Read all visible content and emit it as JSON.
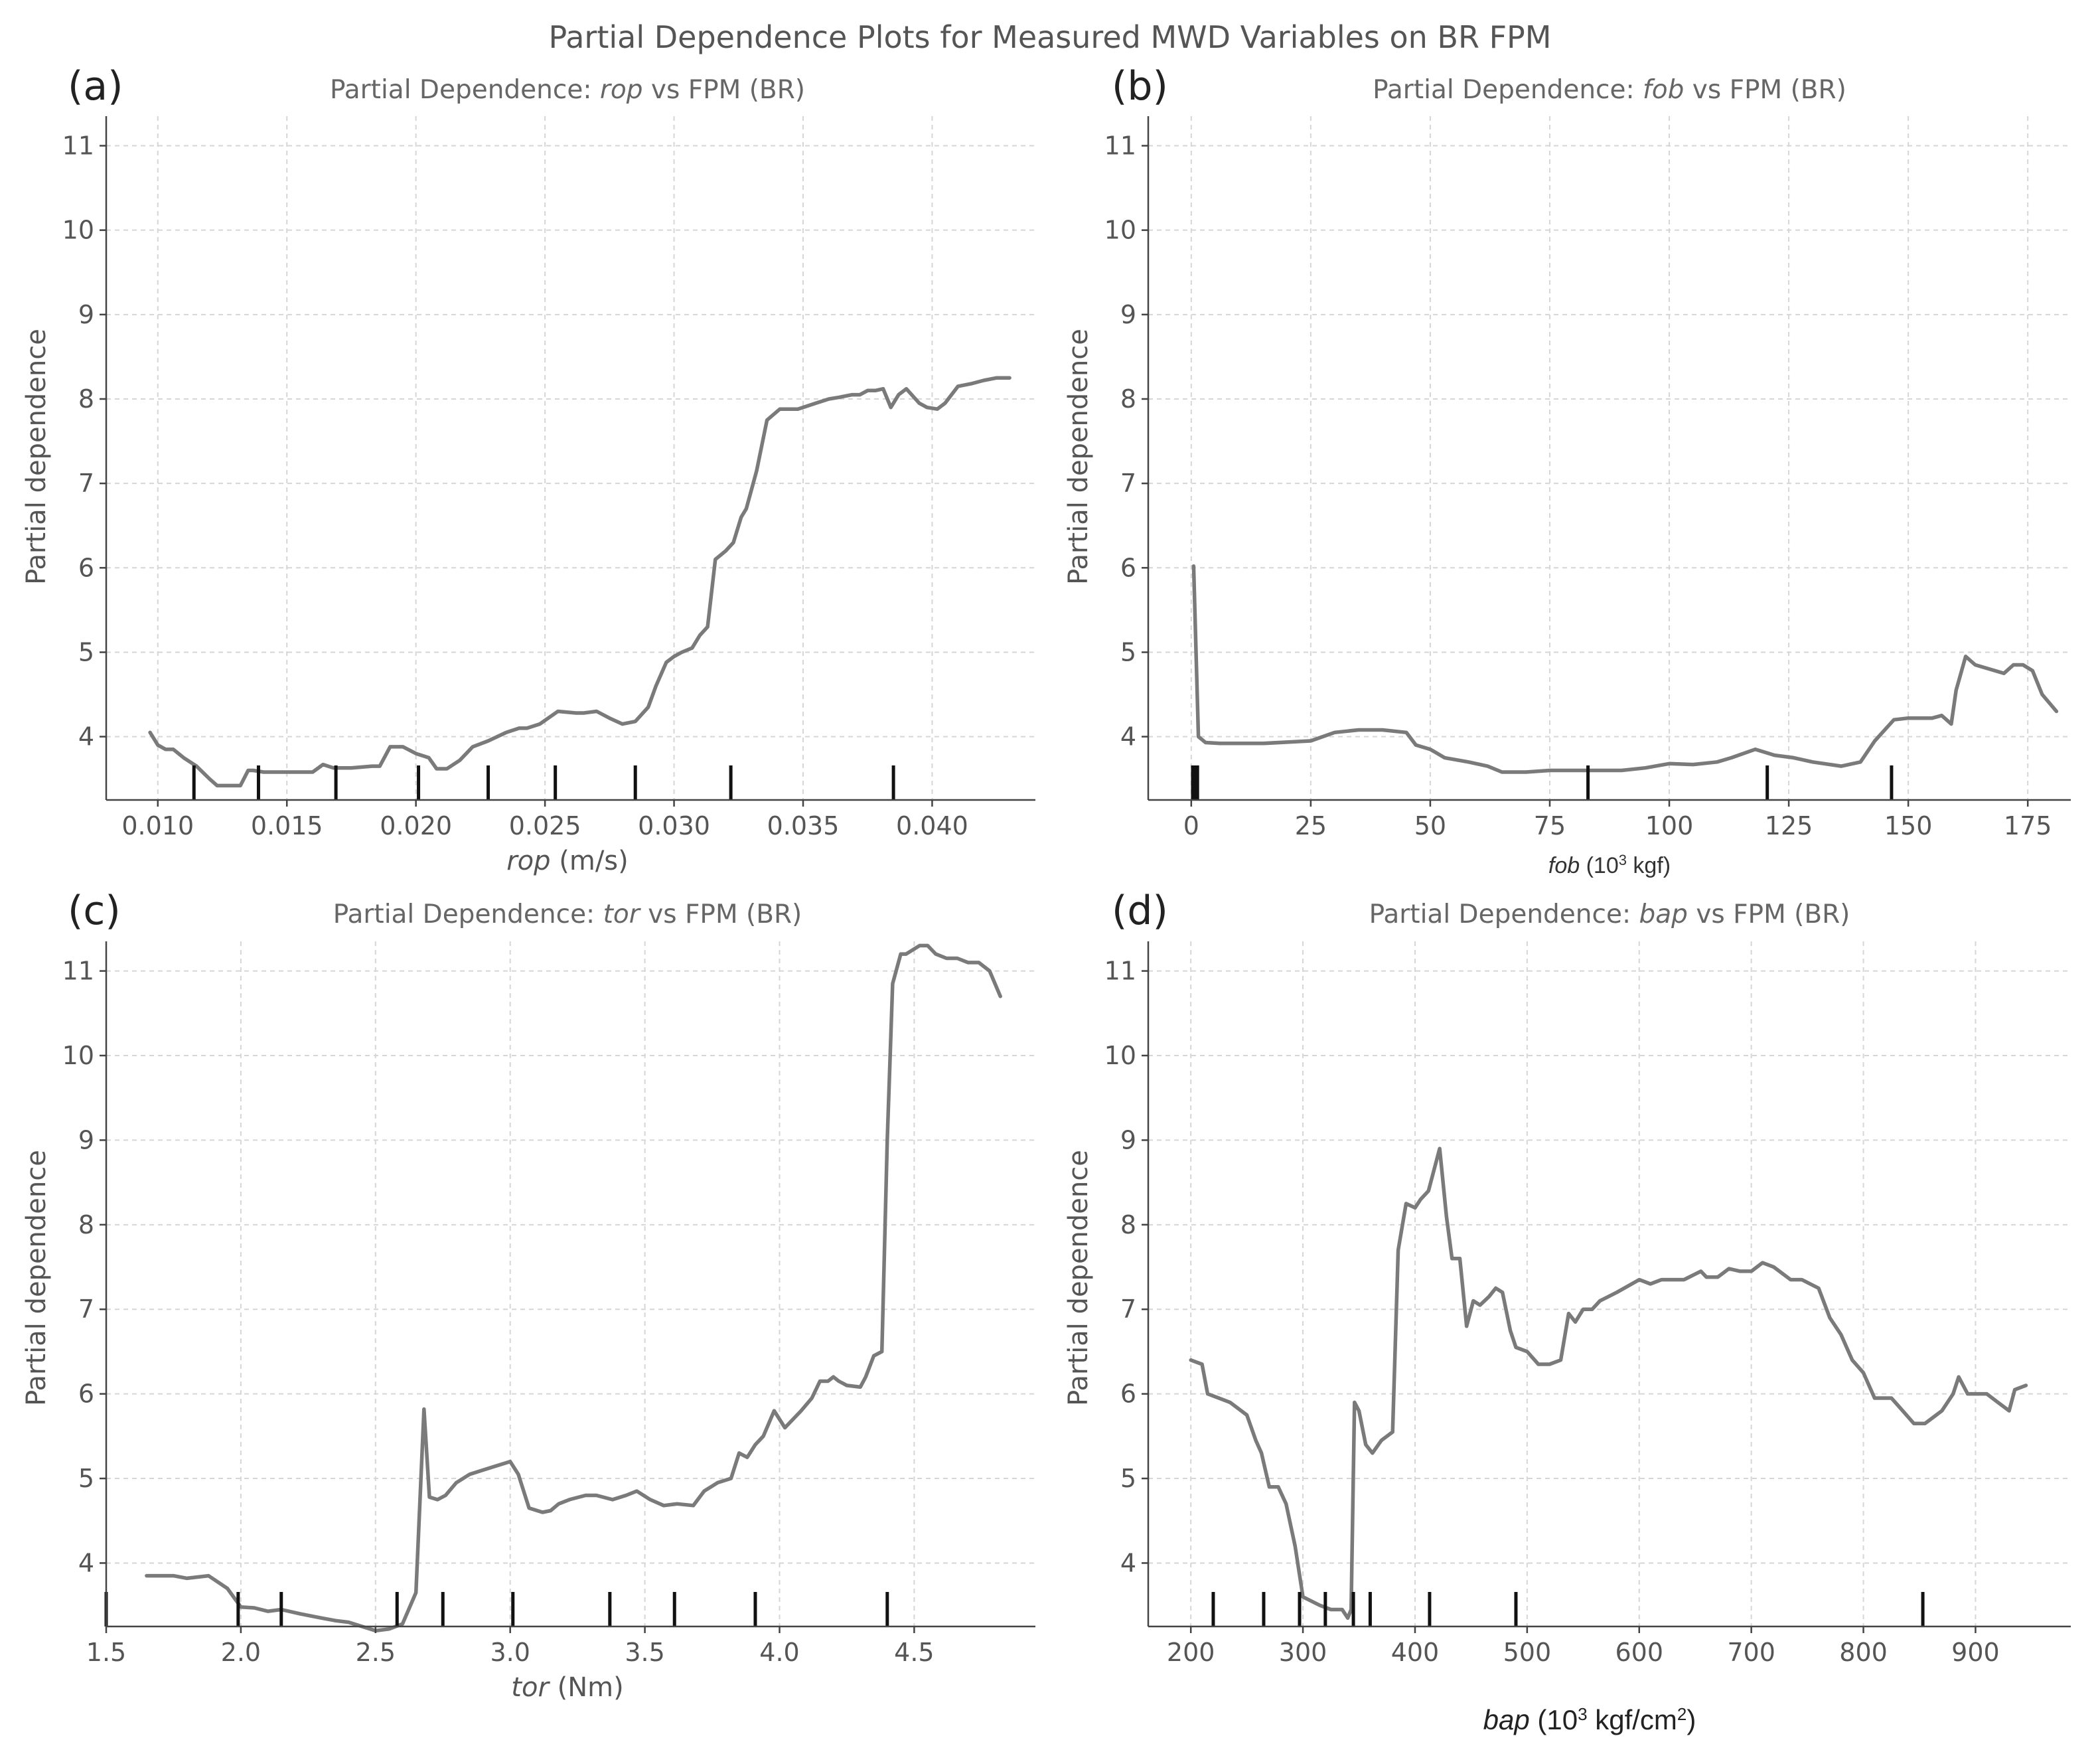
{
  "figure_title": "Partial Dependence Plots for Measured MWD Variables on BR FPM",
  "chart_data": [
    {
      "panel": "(a)",
      "type": "line",
      "title_prefix": "Partial Dependence: ",
      "title_var": "rop",
      "title_suffix": " vs FPM (BR)",
      "xlabel_var": "rop",
      "xlabel_unit": " (m/s)",
      "ylabel": "Partial dependence",
      "xlim": [
        0.008,
        0.044
      ],
      "ylim": [
        3.25,
        11.35
      ],
      "xticks": [
        0.01,
        0.015,
        0.02,
        0.025,
        0.03,
        0.035,
        0.04
      ],
      "xtick_labels": [
        "0.010",
        "0.015",
        "0.020",
        "0.025",
        "0.030",
        "0.035",
        "0.040"
      ],
      "yticks": [
        4,
        5,
        6,
        7,
        8,
        9,
        10,
        11
      ],
      "ytick_labels": [
        "4",
        "5",
        "6",
        "7",
        "8",
        "9",
        "10",
        "11"
      ],
      "grid": true,
      "rug": [
        0.0114,
        0.0139,
        0.0169,
        0.0201,
        0.0228,
        0.0254,
        0.0285,
        0.0322,
        0.0385
      ],
      "x": [
        0.0097,
        0.01,
        0.0103,
        0.0106,
        0.011,
        0.0115,
        0.012,
        0.0123,
        0.0128,
        0.0132,
        0.0135,
        0.0137,
        0.0141,
        0.015,
        0.016,
        0.0164,
        0.0168,
        0.0175,
        0.0183,
        0.0186,
        0.019,
        0.0195,
        0.02,
        0.0205,
        0.0208,
        0.0212,
        0.0217,
        0.0222,
        0.0228,
        0.0235,
        0.024,
        0.0243,
        0.0248,
        0.0255,
        0.0262,
        0.0265,
        0.027,
        0.0275,
        0.028,
        0.0285,
        0.029,
        0.0293,
        0.0297,
        0.03,
        0.0303,
        0.0307,
        0.031,
        0.0313,
        0.0316,
        0.032,
        0.0323,
        0.0326,
        0.0328,
        0.0332,
        0.0336,
        0.0341,
        0.0345,
        0.0348,
        0.0355,
        0.036,
        0.0364,
        0.0369,
        0.0372,
        0.0375,
        0.0378,
        0.0381,
        0.0384,
        0.0387,
        0.039,
        0.0395,
        0.0398,
        0.0402,
        0.0405,
        0.041,
        0.0415,
        0.042,
        0.0425,
        0.043
      ],
      "y": [
        4.05,
        3.9,
        3.85,
        3.85,
        3.75,
        3.65,
        3.5,
        3.42,
        3.42,
        3.42,
        3.6,
        3.6,
        3.58,
        3.58,
        3.58,
        3.67,
        3.63,
        3.63,
        3.65,
        3.65,
        3.88,
        3.88,
        3.8,
        3.75,
        3.62,
        3.62,
        3.72,
        3.88,
        3.95,
        4.05,
        4.1,
        4.1,
        4.15,
        4.3,
        4.28,
        4.28,
        4.3,
        4.22,
        4.15,
        4.18,
        4.35,
        4.6,
        4.88,
        4.95,
        5.0,
        5.05,
        5.2,
        5.3,
        6.1,
        6.2,
        6.3,
        6.6,
        6.7,
        7.15,
        7.75,
        7.88,
        7.88,
        7.88,
        7.95,
        8.0,
        8.02,
        8.05,
        8.05,
        8.1,
        8.1,
        8.12,
        7.9,
        8.05,
        8.12,
        7.95,
        7.9,
        7.88,
        7.95,
        8.15,
        8.18,
        8.22,
        8.25,
        8.25
      ]
    },
    {
      "panel": "(b)",
      "type": "line",
      "title_prefix": "Partial Dependence: ",
      "title_var": "fob",
      "title_suffix": " vs FPM (BR)",
      "xlabel_var": "fob",
      "xlabel_unit_pre": " (10",
      "xlabel_unit_sup": "3",
      "xlabel_unit_post": " kgf)",
      "ylabel": "Partial dependence",
      "xlim": [
        -9,
        184
      ],
      "ylim": [
        3.25,
        11.35
      ],
      "xticks": [
        0,
        25,
        50,
        75,
        100,
        125,
        150,
        175
      ],
      "xtick_labels": [
        "0",
        "25",
        "50",
        "75",
        "100",
        "125",
        "150",
        "175"
      ],
      "yticks": [
        4,
        5,
        6,
        7,
        8,
        9,
        10,
        11
      ],
      "ytick_labels": [
        "4",
        "5",
        "6",
        "7",
        "8",
        "9",
        "10",
        "11"
      ],
      "grid": true,
      "rug": [
        0.3,
        0.8,
        1.3,
        83,
        120.5,
        146.5
      ],
      "x": [
        0.5,
        1.5,
        3,
        6,
        15,
        25,
        30,
        35,
        40,
        45,
        47,
        50,
        53,
        58,
        62,
        65,
        70,
        75,
        80,
        85,
        90,
        95,
        100,
        105,
        110,
        113,
        118,
        122,
        126,
        130,
        136,
        140,
        143,
        147,
        150,
        155,
        157,
        159,
        160,
        162,
        164,
        167,
        170,
        172,
        174,
        176,
        178,
        181
      ],
      "y": [
        6.02,
        4.0,
        3.93,
        3.92,
        3.92,
        3.95,
        4.05,
        4.08,
        4.08,
        4.05,
        3.9,
        3.85,
        3.75,
        3.7,
        3.65,
        3.58,
        3.58,
        3.6,
        3.6,
        3.6,
        3.6,
        3.63,
        3.68,
        3.67,
        3.7,
        3.75,
        3.85,
        3.78,
        3.75,
        3.7,
        3.65,
        3.7,
        3.95,
        4.2,
        4.22,
        4.22,
        4.25,
        4.15,
        4.55,
        4.95,
        4.85,
        4.8,
        4.75,
        4.85,
        4.85,
        4.78,
        4.5,
        4.3
      ]
    },
    {
      "panel": "(c)",
      "type": "line",
      "title_prefix": "Partial Dependence: ",
      "title_var": "tor",
      "title_suffix": " vs FPM (BR)",
      "xlabel_var": "tor",
      "xlabel_unit": " (Nm)",
      "ylabel": "Partial dependence",
      "xlim": [
        1.5,
        4.95
      ],
      "ylim": [
        3.25,
        11.35
      ],
      "xticks": [
        1.5,
        2.0,
        2.5,
        3.0,
        3.5,
        4.0,
        4.5
      ],
      "xtick_labels": [
        "1.5",
        "2.0",
        "2.5",
        "3.0",
        "3.5",
        "4.0",
        "4.5"
      ],
      "yticks": [
        4,
        5,
        6,
        7,
        8,
        9,
        10,
        11
      ],
      "ytick_labels": [
        "4",
        "5",
        "6",
        "7",
        "8",
        "9",
        "10",
        "11"
      ],
      "grid": true,
      "rug": [
        1.5,
        1.99,
        2.15,
        2.58,
        2.75,
        3.01,
        3.37,
        3.61,
        3.91,
        4.4
      ],
      "x": [
        1.65,
        1.72,
        1.75,
        1.8,
        1.88,
        1.95,
        2.0,
        2.05,
        2.1,
        2.15,
        2.22,
        2.3,
        2.35,
        2.4,
        2.45,
        2.5,
        2.55,
        2.6,
        2.65,
        2.68,
        2.7,
        2.73,
        2.76,
        2.8,
        2.85,
        2.9,
        2.95,
        3.0,
        3.03,
        3.07,
        3.12,
        3.15,
        3.18,
        3.22,
        3.28,
        3.32,
        3.38,
        3.43,
        3.47,
        3.52,
        3.57,
        3.62,
        3.68,
        3.72,
        3.77,
        3.82,
        3.85,
        3.88,
        3.91,
        3.94,
        3.98,
        4.02,
        4.08,
        4.12,
        4.15,
        4.18,
        4.2,
        4.22,
        4.25,
        4.3,
        4.32,
        4.35,
        4.38,
        4.4,
        4.42,
        4.45,
        4.47,
        4.52,
        4.55,
        4.58,
        4.62,
        4.66,
        4.7,
        4.74,
        4.78,
        4.82
      ],
      "y": [
        3.85,
        3.85,
        3.85,
        3.82,
        3.85,
        3.7,
        3.48,
        3.47,
        3.43,
        3.45,
        3.4,
        3.35,
        3.32,
        3.3,
        3.25,
        3.2,
        3.22,
        3.28,
        3.65,
        5.82,
        4.78,
        4.75,
        4.8,
        4.95,
        5.05,
        5.1,
        5.15,
        5.2,
        5.05,
        4.65,
        4.6,
        4.62,
        4.7,
        4.75,
        4.8,
        4.8,
        4.75,
        4.8,
        4.85,
        4.75,
        4.68,
        4.7,
        4.68,
        4.85,
        4.95,
        5.0,
        5.3,
        5.25,
        5.4,
        5.5,
        5.8,
        5.6,
        5.8,
        5.95,
        6.15,
        6.15,
        6.2,
        6.15,
        6.1,
        6.08,
        6.2,
        6.45,
        6.5,
        9.0,
        10.85,
        11.2,
        11.2,
        11.3,
        11.3,
        11.2,
        11.15,
        11.15,
        11.1,
        11.1,
        11.0,
        10.7
      ]
    },
    {
      "panel": "(d)",
      "type": "line",
      "title_prefix": "Partial Dependence: ",
      "title_var": "bap",
      "title_suffix": " vs FPM (BR)",
      "xlabel_var": "bap",
      "xlabel_unit_pre": " (10",
      "xlabel_unit_sup": "3",
      "xlabel_unit_mid": " kgf/cm",
      "xlabel_unit_sup2": "2",
      "xlabel_unit_post": ")",
      "ylabel": "Partial dependence",
      "xlim": [
        162,
        985
      ],
      "ylim": [
        3.25,
        11.35
      ],
      "xticks": [
        200,
        300,
        400,
        500,
        600,
        700,
        800,
        900
      ],
      "xtick_labels": [
        "200",
        "300",
        "400",
        "500",
        "600",
        "700",
        "800",
        "900"
      ],
      "yticks": [
        4,
        5,
        6,
        7,
        8,
        9,
        10,
        11
      ],
      "ytick_labels": [
        "4",
        "5",
        "6",
        "7",
        "8",
        "9",
        "10",
        "11"
      ],
      "grid": true,
      "rug": [
        220,
        265,
        297,
        320,
        345,
        360,
        413,
        490,
        853
      ],
      "x": [
        200,
        210,
        215,
        235,
        250,
        258,
        263,
        270,
        278,
        285,
        293,
        300,
        315,
        325,
        335,
        340,
        343,
        346,
        350,
        356,
        362,
        370,
        380,
        385,
        392,
        400,
        405,
        412,
        422,
        428,
        433,
        440,
        446,
        452,
        458,
        466,
        472,
        478,
        485,
        490,
        500,
        510,
        520,
        530,
        537,
        543,
        550,
        558,
        565,
        580,
        600,
        610,
        620,
        630,
        640,
        655,
        660,
        670,
        680,
        690,
        700,
        710,
        720,
        735,
        745,
        760,
        770,
        780,
        790,
        800,
        810,
        825,
        835,
        845,
        855,
        865,
        870,
        880,
        885,
        893,
        900,
        910,
        920,
        930,
        935,
        945
      ],
      "y": [
        6.4,
        6.35,
        6.0,
        5.9,
        5.75,
        5.45,
        5.3,
        4.9,
        4.9,
        4.7,
        4.2,
        3.6,
        3.5,
        3.45,
        3.45,
        3.35,
        3.45,
        5.9,
        5.8,
        5.4,
        5.3,
        5.45,
        5.55,
        7.7,
        8.25,
        8.2,
        8.3,
        8.4,
        8.9,
        8.1,
        7.6,
        7.6,
        6.8,
        7.1,
        7.05,
        7.15,
        7.25,
        7.2,
        6.75,
        6.55,
        6.5,
        6.35,
        6.35,
        6.4,
        6.95,
        6.85,
        7.0,
        7.0,
        7.1,
        7.2,
        7.35,
        7.3,
        7.35,
        7.35,
        7.35,
        7.45,
        7.38,
        7.38,
        7.48,
        7.45,
        7.45,
        7.55,
        7.5,
        7.35,
        7.35,
        7.25,
        6.9,
        6.7,
        6.4,
        6.25,
        5.95,
        5.95,
        5.8,
        5.65,
        5.65,
        5.75,
        5.8,
        6.0,
        6.2,
        6.0,
        6.0,
        6.0,
        5.9,
        5.8,
        6.05,
        6.1
      ]
    }
  ]
}
